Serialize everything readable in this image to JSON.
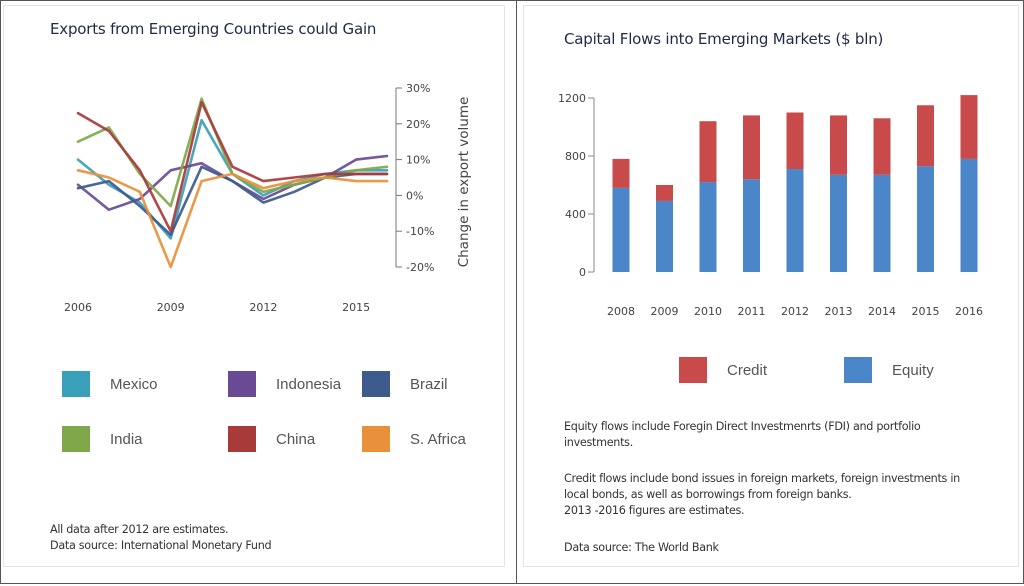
{
  "left_panel": {
    "title": "Exports from Emerging Countries could Gain",
    "notes": [
      "All data after 2012 are estimates.",
      "Data source: International Monetary Fund"
    ]
  },
  "right_panel": {
    "title": "Capital Flows into Emerging Markets ($ bln)",
    "notes": [
      "Equity flows include Foregin Direct Investmenrts (FDI) and portfolio",
      "investments.",
      "Credit flows include bond issues in foreign markets, foreign investments in",
      "local bonds, as well as borrowings from foreign banks.",
      "2013 -2016 figures are estimates.",
      "Data source: The World Bank"
    ]
  },
  "chart_data": [
    {
      "type": "line",
      "title": "Exports from Emerging Countries could Gain",
      "ylabel": "Change in export volume",
      "x": [
        2006,
        2007,
        2008,
        2009,
        2010,
        2011,
        2012,
        2013,
        2014,
        2015,
        2016
      ],
      "xticks": [
        "2006",
        "2009",
        "2012",
        "2015"
      ],
      "yticks": [
        "30%",
        "20%",
        "10%",
        "0%",
        "-10%",
        "-20%"
      ],
      "ylim": [
        -20,
        30
      ],
      "series": [
        {
          "name": "Mexico",
          "color": "#3a9fb8",
          "values": [
            10,
            3,
            -2,
            -12,
            21,
            6,
            0,
            4,
            6,
            7,
            7
          ]
        },
        {
          "name": "Indonesia",
          "color": "#6a4a94",
          "values": [
            3,
            -4,
            -1,
            7,
            9,
            4,
            -1,
            3,
            5,
            10,
            11
          ]
        },
        {
          "name": "Brazil",
          "color": "#3d5a8c",
          "values": [
            2,
            4,
            -3,
            -11,
            8,
            4,
            -2,
            1,
            5,
            6,
            6
          ]
        },
        {
          "name": "India",
          "color": "#7fa84a",
          "values": [
            15,
            19,
            6,
            -3,
            27,
            6,
            1,
            3,
            5,
            7,
            8
          ]
        },
        {
          "name": "China",
          "color": "#a83a3a",
          "values": [
            23,
            18,
            7,
            -10,
            26,
            8,
            4,
            5,
            6,
            6,
            6
          ]
        },
        {
          "name": "S. Africa",
          "color": "#e8903a",
          "values": [
            7,
            5,
            1,
            -20,
            4,
            6,
            2,
            4,
            5,
            4,
            4
          ]
        }
      ],
      "legend": "bottom"
    },
    {
      "type": "bar",
      "stacked": true,
      "title": "Capital Flows into Emerging Markets ($ bln)",
      "categories": [
        "2008",
        "2009",
        "2010",
        "2011",
        "2012",
        "2013",
        "2014",
        "2015",
        "2016"
      ],
      "yticks": [
        "1200",
        "800",
        "400",
        "0"
      ],
      "ylim": [
        0,
        1200
      ],
      "series": [
        {
          "name": "Equity",
          "color": "#4a86c8",
          "values": [
            580,
            490,
            620,
            640,
            710,
            670,
            670,
            730,
            780
          ]
        },
        {
          "name": "Credit",
          "color": "#c84a4a",
          "values": [
            200,
            110,
            420,
            440,
            390,
            410,
            390,
            420,
            440
          ]
        }
      ],
      "legend": "bottom",
      "legend_order": [
        "Credit",
        "Equity"
      ]
    }
  ]
}
